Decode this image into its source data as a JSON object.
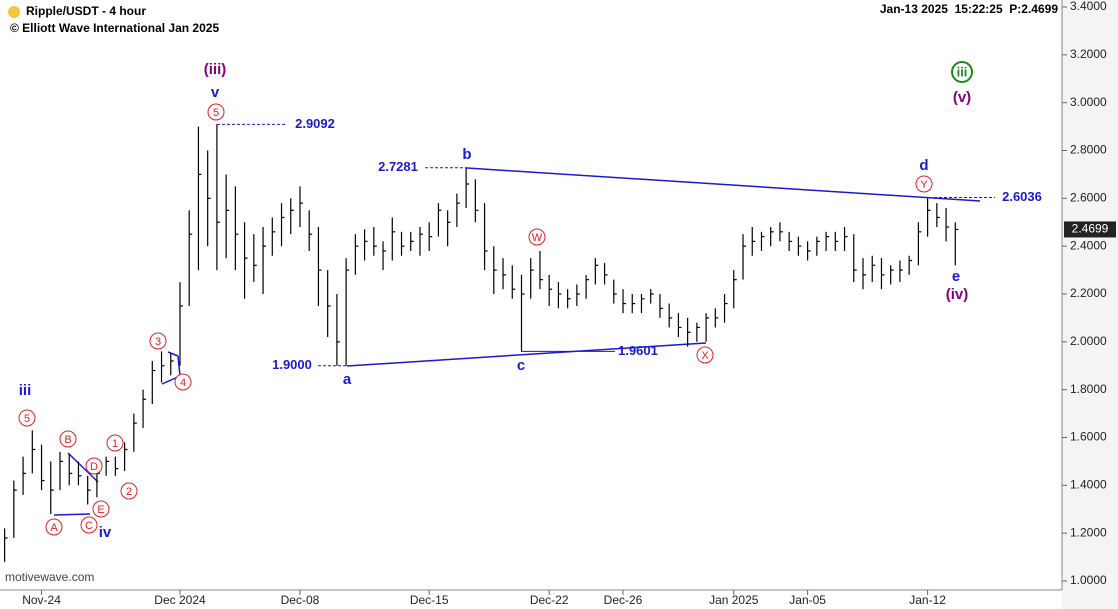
{
  "chart_data": {
    "type": "ohlc",
    "title": "Ripple/USDT - 4 hour",
    "subtitle": "© Elliott Wave International Jan 2025",
    "info": "Jan-13 2025  15:22:25  P:2.4699",
    "watermark": "motivewave.com",
    "color": "#000000",
    "categories": [
      null,
      null,
      null,
      null,
      "Nov-24",
      null,
      null,
      null,
      null,
      null,
      null,
      null,
      null,
      null,
      null,
      null,
      null,
      null,
      null,
      "Dec 2024",
      null,
      null,
      null,
      null,
      null,
      null,
      null,
      null,
      null,
      null,
      null,
      null,
      "Dec-08",
      null,
      null,
      null,
      null,
      null,
      null,
      null,
      null,
      null,
      null,
      null,
      null,
      null,
      "Dec-15",
      null,
      null,
      null,
      null,
      null,
      null,
      null,
      null,
      null,
      null,
      null,
      null,
      "Dec-22",
      null,
      null,
      null,
      null,
      null,
      null,
      null,
      "Dec-26",
      null,
      null,
      null,
      null,
      null,
      null,
      null,
      null,
      null,
      null,
      null,
      "Jan 2025",
      null,
      null,
      null,
      null,
      null,
      null,
      null,
      "Jan-05",
      null,
      null,
      null,
      null,
      null,
      null,
      null,
      null,
      null,
      null,
      null,
      null,
      "Jan-12",
      null,
      null,
      null
    ],
    "high": [
      1.22,
      1.42,
      1.52,
      1.63,
      1.57,
      1.5,
      1.54,
      1.53,
      1.5,
      1.44,
      1.48,
      1.52,
      1.52,
      1.58,
      1.7,
      1.8,
      1.92,
      1.96,
      1.95,
      2.25,
      2.55,
      2.9,
      2.8,
      2.91,
      2.7,
      2.65,
      2.5,
      2.45,
      2.48,
      2.52,
      2.58,
      2.6,
      2.65,
      2.55,
      2.48,
      2.3,
      2.2,
      2.35,
      2.45,
      2.47,
      2.48,
      2.42,
      2.52,
      2.46,
      2.46,
      2.48,
      2.5,
      2.58,
      2.55,
      2.62,
      2.73,
      2.68,
      2.58,
      2.4,
      2.35,
      2.32,
      2.28,
      2.35,
      2.38,
      2.28,
      2.25,
      2.22,
      2.24,
      2.28,
      2.35,
      2.33,
      2.26,
      2.22,
      2.2,
      2.2,
      2.22,
      2.2,
      2.16,
      2.12,
      2.1,
      2.08,
      2.12,
      2.14,
      2.2,
      2.3,
      2.45,
      2.48,
      2.46,
      2.48,
      2.5,
      2.46,
      2.44,
      2.42,
      2.44,
      2.46,
      2.46,
      2.48,
      2.45,
      2.35,
      2.36,
      2.35,
      2.32,
      2.34,
      2.36,
      2.5,
      2.6,
      2.58,
      2.56,
      2.5
    ],
    "low": [
      1.08,
      1.18,
      1.36,
      1.45,
      1.38,
      1.28,
      1.38,
      1.4,
      1.4,
      1.32,
      1.35,
      1.44,
      1.44,
      1.46,
      1.54,
      1.64,
      1.74,
      1.83,
      1.86,
      1.9,
      2.15,
      2.3,
      2.4,
      2.3,
      2.35,
      2.3,
      2.18,
      2.25,
      2.2,
      2.36,
      2.4,
      2.45,
      2.48,
      2.38,
      2.15,
      2.02,
      1.9,
      1.9,
      2.28,
      2.34,
      2.36,
      2.3,
      2.34,
      2.36,
      2.38,
      2.36,
      2.38,
      2.44,
      2.4,
      2.48,
      2.56,
      2.5,
      2.3,
      2.2,
      2.22,
      2.18,
      1.96,
      2.18,
      2.22,
      2.15,
      2.14,
      2.14,
      2.15,
      2.18,
      2.24,
      2.24,
      2.16,
      2.12,
      2.12,
      2.12,
      2.16,
      2.1,
      2.06,
      2.02,
      1.98,
      2.0,
      2.0,
      2.06,
      2.08,
      2.14,
      2.26,
      2.36,
      2.38,
      2.4,
      2.42,
      2.38,
      2.36,
      2.34,
      2.36,
      2.38,
      2.38,
      2.38,
      2.25,
      2.22,
      2.25,
      2.22,
      2.24,
      2.25,
      2.28,
      2.32,
      2.44,
      2.48,
      2.42,
      2.32
    ],
    "close": [
      1.18,
      1.38,
      1.45,
      1.55,
      1.42,
      1.38,
      1.5,
      1.45,
      1.44,
      1.38,
      1.45,
      1.5,
      1.47,
      1.55,
      1.66,
      1.76,
      1.88,
      1.9,
      1.92,
      2.15,
      2.45,
      2.7,
      2.6,
      2.5,
      2.55,
      2.45,
      2.35,
      2.32,
      2.4,
      2.46,
      2.52,
      2.55,
      2.58,
      2.45,
      2.3,
      2.15,
      2.0,
      2.3,
      2.4,
      2.42,
      2.4,
      2.38,
      2.46,
      2.4,
      2.42,
      2.45,
      2.44,
      2.55,
      2.5,
      2.58,
      2.66,
      2.55,
      2.38,
      2.3,
      2.28,
      2.22,
      2.2,
      2.3,
      2.26,
      2.22,
      2.2,
      2.18,
      2.2,
      2.26,
      2.32,
      2.28,
      2.2,
      2.16,
      2.16,
      2.18,
      2.2,
      2.14,
      2.1,
      2.06,
      2.04,
      2.06,
      2.1,
      2.1,
      2.16,
      2.26,
      2.4,
      2.42,
      2.44,
      2.46,
      2.46,
      2.42,
      2.4,
      2.38,
      2.42,
      2.44,
      2.42,
      2.44,
      2.3,
      2.28,
      2.32,
      2.28,
      2.3,
      2.3,
      2.34,
      2.46,
      2.55,
      2.52,
      2.48,
      2.4699
    ],
    "ylim": [
      1.0,
      3.4
    ],
    "yticks": [
      {
        "value": 1.0,
        "label": "1.0000"
      },
      {
        "value": 1.2,
        "label": "1.2000"
      },
      {
        "value": 1.4,
        "label": "1.4000"
      },
      {
        "value": 1.6,
        "label": "1.6000"
      },
      {
        "value": 1.8,
        "label": "1.8000"
      },
      {
        "value": 2.0,
        "label": "2.0000"
      },
      {
        "value": 2.2,
        "label": "2.2000"
      },
      {
        "value": 2.4,
        "label": "2.4000"
      },
      {
        "value": 2.6,
        "label": "2.6000"
      },
      {
        "value": 2.8,
        "label": "2.8000"
      },
      {
        "value": 3.0,
        "label": "3.0000"
      },
      {
        "value": 3.2,
        "label": "3.2000"
      },
      {
        "value": 3.4,
        "label": "3.4000"
      }
    ],
    "levels": [
      {
        "value": 2.9092,
        "label": "2.9092"
      },
      {
        "value": 2.7281,
        "label": "2.7281"
      },
      {
        "value": 1.9,
        "label": "1.9000"
      },
      {
        "value": 1.9601,
        "label": "1.9601"
      },
      {
        "value": 2.6036,
        "label": "2.6036"
      }
    ],
    "level_color": "#1a1ad0",
    "annotations": [
      {
        "text": "(iii)",
        "color": "#800080"
      },
      {
        "text": "v",
        "color": "#1a1ad0"
      },
      {
        "text": "5",
        "color": "#e02020",
        "circled": true
      },
      {
        "text": "iii",
        "color": "#1a1ad0"
      },
      {
        "text": "5",
        "color": "#e02020",
        "circled": true
      },
      {
        "text": "B",
        "color": "#e02020",
        "circled": true
      },
      {
        "text": "D",
        "color": "#e02020",
        "circled": true
      },
      {
        "text": "1",
        "color": "#e02020",
        "circled": true
      },
      {
        "text": "2",
        "color": "#e02020",
        "circled": true
      },
      {
        "text": "3",
        "color": "#e02020",
        "circled": true
      },
      {
        "text": "4",
        "color": "#e02020",
        "circled": true
      },
      {
        "text": "E",
        "color": "#e02020",
        "circled": true
      },
      {
        "text": "A",
        "color": "#e02020",
        "circled": true
      },
      {
        "text": "C",
        "color": "#e02020",
        "circled": true
      },
      {
        "text": "iv",
        "color": "#1a1ad0"
      },
      {
        "text": "b",
        "color": "#1a1ad0"
      },
      {
        "text": "a",
        "color": "#1a1ad0"
      },
      {
        "text": "c",
        "color": "#1a1ad0"
      },
      {
        "text": "W",
        "color": "#e02020",
        "circled": true
      },
      {
        "text": "X",
        "color": "#e02020",
        "circled": true
      },
      {
        "text": "d",
        "color": "#1a1ad0"
      },
      {
        "text": "Y",
        "color": "#e02020",
        "circled": true
      },
      {
        "text": "e",
        "color": "#1a1ad0"
      },
      {
        "text": "(iv)",
        "color": "#800080"
      },
      {
        "text": "iii",
        "color": "#1a8a1a",
        "circled": true
      },
      {
        "text": "(v)",
        "color": "#800080"
      }
    ]
  }
}
